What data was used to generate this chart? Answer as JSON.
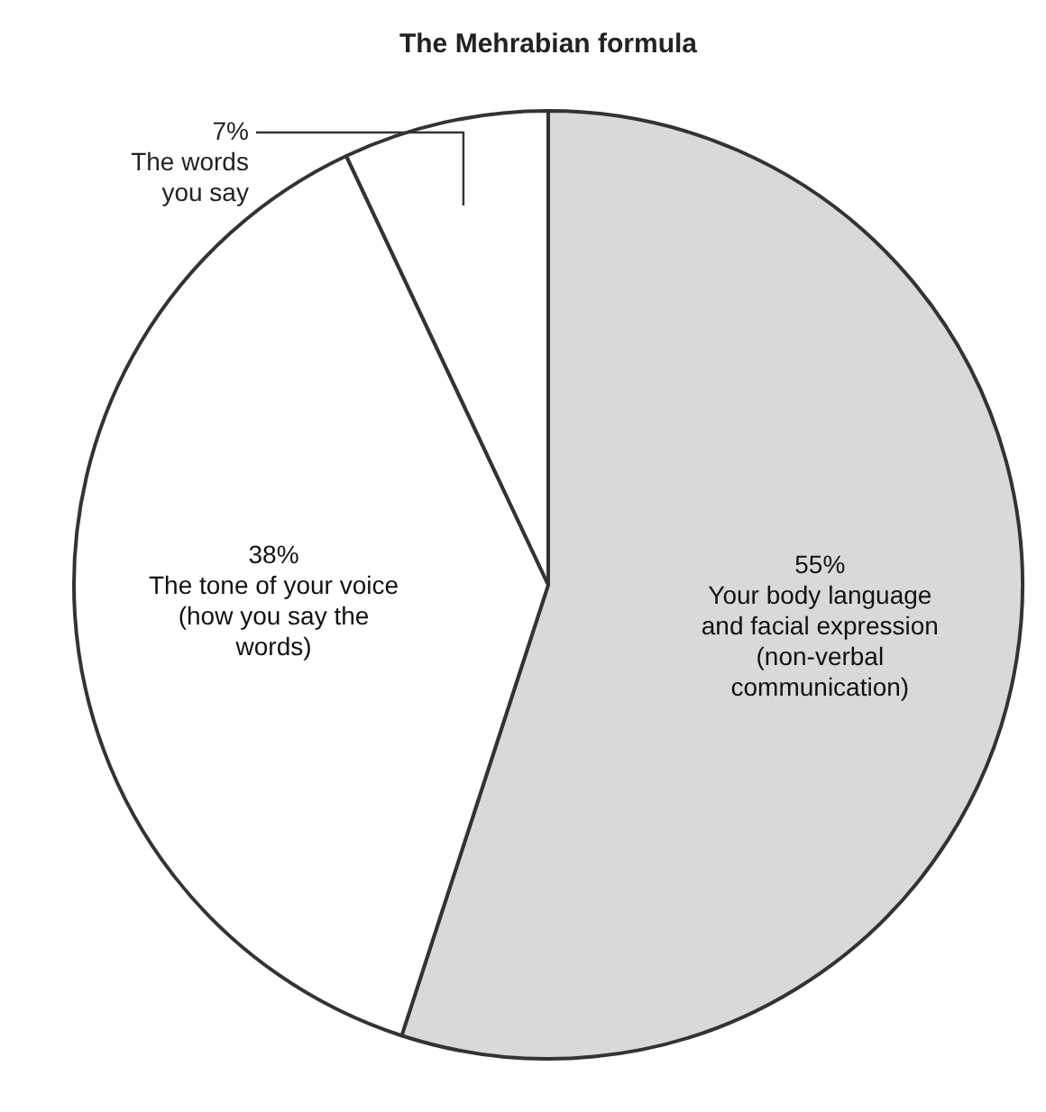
{
  "chart_data": {
    "type": "pie",
    "title": "The Mehrabian formula",
    "categories": [
      "Your body language and facial expression (non-verbal communication)",
      "The tone of your voice (how you say the words)",
      "The words you say"
    ],
    "values": [
      55,
      38,
      7
    ],
    "colors": [
      "#d9d9d9",
      "#ffffff",
      "#ffffff"
    ],
    "value_labels": [
      "55%",
      "38%",
      "7%"
    ],
    "legend": false
  }
}
